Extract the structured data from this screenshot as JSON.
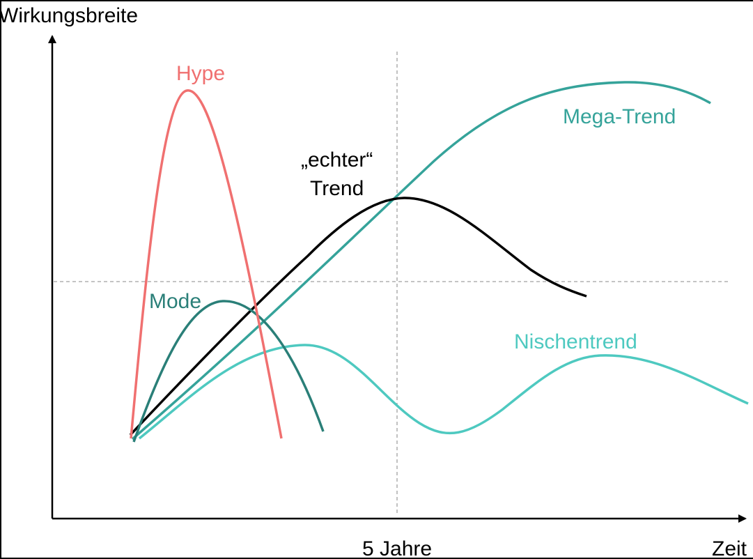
{
  "axes": {
    "y_label": "Wirkungsbreite",
    "x_label": "Zeit",
    "x_marker_label": "5 Jahre"
  },
  "curves": {
    "hype": {
      "name": "Hype",
      "color": "#f07070"
    },
    "mode": {
      "name": "Mode",
      "color": "#2a7f78"
    },
    "echter_trend": {
      "name_line1": "„echter“",
      "name_line2": "Trend",
      "color": "#000000"
    },
    "mega_trend": {
      "name": "Mega-Trend",
      "color": "#35a39a"
    },
    "nischentrend": {
      "name": "Nischentrend",
      "color": "#4ec9c0"
    }
  },
  "colors": {
    "axis": "#000000",
    "guide_line": "#a0a0a0",
    "background": "#ffffff"
  }
}
